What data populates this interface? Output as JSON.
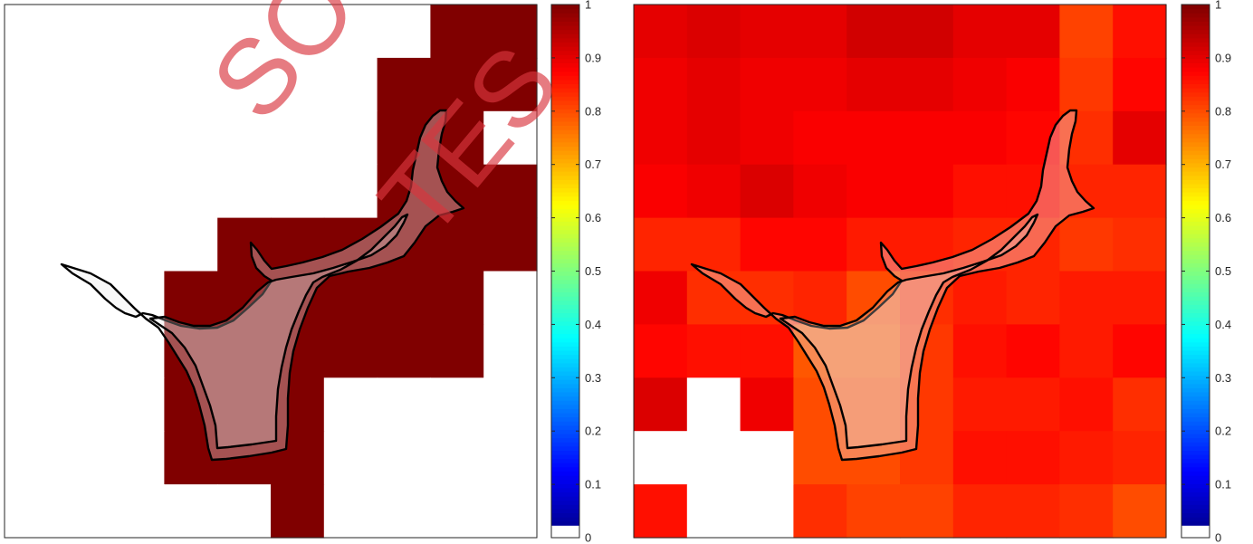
{
  "chart_data": [
    {
      "type": "heatmap",
      "colormap": "jet",
      "colormap_lowest": "#ffffff",
      "clim": [
        0,
        1
      ],
      "colorbar": {
        "ticks": [
          "0",
          "0.1",
          "0.2",
          "0.3",
          "0.4",
          "0.5",
          "0.6",
          "0.7",
          "0.8",
          "0.9",
          "1"
        ]
      },
      "grid_rows": 10,
      "grid_cols": 10,
      "cells": [
        [
          0,
          0,
          0,
          0,
          0,
          0,
          0,
          0,
          1,
          1
        ],
        [
          0,
          0,
          0,
          0,
          0,
          0,
          0,
          1,
          1,
          1
        ],
        [
          0,
          0,
          0,
          0,
          0,
          0,
          0,
          1,
          1,
          0
        ],
        [
          0,
          0,
          0,
          0,
          0,
          0,
          0,
          1,
          1,
          1
        ],
        [
          0,
          0,
          0,
          0,
          1,
          1,
          1,
          1,
          1,
          1
        ],
        [
          0,
          0,
          0,
          1,
          1,
          1,
          1,
          1,
          1,
          0
        ],
        [
          0,
          0,
          0,
          1,
          1,
          1,
          1,
          1,
          1,
          0
        ],
        [
          0,
          0,
          0,
          1,
          1,
          1,
          0,
          0,
          0,
          0
        ],
        [
          0,
          0,
          0,
          1,
          1,
          1,
          0,
          0,
          0,
          0
        ],
        [
          0,
          0,
          0,
          0,
          0,
          1,
          0,
          0,
          0,
          0
        ]
      ],
      "grid": false,
      "axis_ticks": false
    },
    {
      "type": "heatmap",
      "colormap": "jet",
      "colormap_lowest": "#ffffff",
      "clim": [
        0,
        1
      ],
      "colorbar": {
        "ticks": [
          "0",
          "0.1",
          "0.2",
          "0.3",
          "0.4",
          "0.5",
          "0.6",
          "0.7",
          "0.8",
          "0.9",
          "1"
        ]
      },
      "grid_rows": 10,
      "grid_cols": 10,
      "cells": [
        [
          0.9,
          0.91,
          0.9,
          0.9,
          0.92,
          0.92,
          0.9,
          0.9,
          0.81,
          0.86
        ],
        [
          0.89,
          0.9,
          0.89,
          0.89,
          0.9,
          0.9,
          0.89,
          0.88,
          0.82,
          0.87
        ],
        [
          0.89,
          0.9,
          0.89,
          0.88,
          0.88,
          0.88,
          0.88,
          0.87,
          0.83,
          0.9
        ],
        [
          0.88,
          0.89,
          0.91,
          0.89,
          0.88,
          0.88,
          0.86,
          0.86,
          0.84,
          0.84
        ],
        [
          0.84,
          0.84,
          0.87,
          0.87,
          0.85,
          0.85,
          0.84,
          0.84,
          0.82,
          0.83
        ],
        [
          0.89,
          0.83,
          0.83,
          0.84,
          0.8,
          0.83,
          0.85,
          0.84,
          0.85,
          0.85
        ],
        [
          0.87,
          0.86,
          0.86,
          0.79,
          0.79,
          0.82,
          0.86,
          0.87,
          0.85,
          0.87
        ],
        [
          0.91,
          0.0,
          0.89,
          0.8,
          0.8,
          0.82,
          0.85,
          0.85,
          0.86,
          0.83
        ],
        [
          0.0,
          0.0,
          0.0,
          0.8,
          0.8,
          0.82,
          0.86,
          0.86,
          0.85,
          0.84
        ],
        [
          0.86,
          0.0,
          0.0,
          0.83,
          0.81,
          0.81,
          0.84,
          0.84,
          0.83,
          0.8
        ]
      ],
      "grid": false,
      "axis_ticks": false
    }
  ],
  "watermark": {
    "text": [
      "SO",
      "TES"
    ]
  }
}
